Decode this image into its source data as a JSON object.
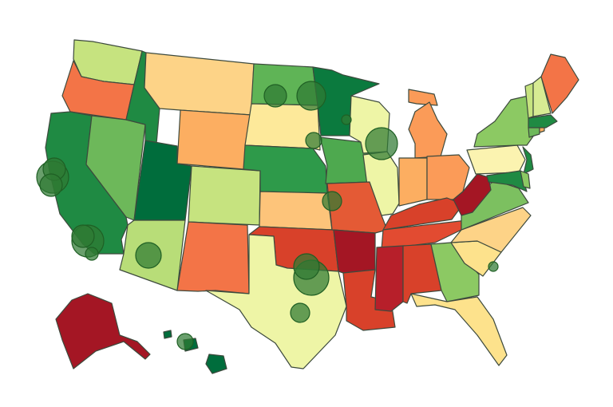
{
  "map": {
    "type": "choropleth-bubble-map",
    "region": "United States",
    "palette": {
      "dark_green": "#006d3c",
      "green": "#1f8a43",
      "mid_green": "#4ea94f",
      "light_green": "#8cc963",
      "yellow_green": "#c6e37f",
      "pale_yellow": "#eef5a6",
      "pale_orange": "#fdd387",
      "orange": "#fcae61",
      "dark_orange": "#f37447",
      "red": "#d8412a",
      "dark_red": "#a41624"
    },
    "bubble_color": "#2f7a33"
  },
  "states": [
    {
      "code": "WA",
      "fill": "#c6e37f"
    },
    {
      "code": "OR",
      "fill": "#f37447"
    },
    {
      "code": "CA",
      "fill": "#1f8a43"
    },
    {
      "code": "NV",
      "fill": "#6db85a"
    },
    {
      "code": "ID",
      "fill": "#1f8a43"
    },
    {
      "code": "MT",
      "fill": "#fdd387"
    },
    {
      "code": "WY",
      "fill": "#fcae61"
    },
    {
      "code": "UT",
      "fill": "#006d3c"
    },
    {
      "code": "AZ",
      "fill": "#b8dd78"
    },
    {
      "code": "CO",
      "fill": "#c6e37f"
    },
    {
      "code": "NM",
      "fill": "#f37447"
    },
    {
      "code": "ND",
      "fill": "#5fb456"
    },
    {
      "code": "SD",
      "fill": "#fde99a"
    },
    {
      "code": "NE",
      "fill": "#2e9a4a"
    },
    {
      "code": "KS",
      "fill": "#fdc47a"
    },
    {
      "code": "OK",
      "fill": "#d8412a"
    },
    {
      "code": "TX",
      "fill": "#eef5a6"
    },
    {
      "code": "MN",
      "fill": "#0b7a3e"
    },
    {
      "code": "IA",
      "fill": "#4ea94f"
    },
    {
      "code": "MO",
      "fill": "#e45a35"
    },
    {
      "code": "AR",
      "fill": "#a41624"
    },
    {
      "code": "LA",
      "fill": "#d8412a"
    },
    {
      "code": "WI",
      "fill": "#eef5a6"
    },
    {
      "code": "IL",
      "fill": "#eef5a6"
    },
    {
      "code": "MI",
      "fill": "#fb9b58"
    },
    {
      "code": "IN",
      "fill": "#fcae61"
    },
    {
      "code": "OH",
      "fill": "#fb9b58"
    },
    {
      "code": "KY",
      "fill": "#d8412a"
    },
    {
      "code": "TN",
      "fill": "#e24b31"
    },
    {
      "code": "MS",
      "fill": "#b71f2a"
    },
    {
      "code": "AL",
      "fill": "#d8412a"
    },
    {
      "code": "GA",
      "fill": "#8cc963"
    },
    {
      "code": "FL",
      "fill": "#fde28c"
    },
    {
      "code": "SC",
      "fill": "#fde28c"
    },
    {
      "code": "NC",
      "fill": "#fdd387"
    },
    {
      "code": "VA",
      "fill": "#7cc060"
    },
    {
      "code": "WV",
      "fill": "#a41624"
    },
    {
      "code": "PA",
      "fill": "#fbf3b0"
    },
    {
      "code": "NY",
      "fill": "#8cc963"
    },
    {
      "code": "NJ",
      "fill": "#1f8a43"
    },
    {
      "code": "MD",
      "fill": "#1f8a43"
    },
    {
      "code": "DE",
      "fill": "#8cc963"
    },
    {
      "code": "CT",
      "fill": "#6db85a"
    },
    {
      "code": "RI",
      "fill": "#fcae61"
    },
    {
      "code": "MA",
      "fill": "#1f8a43"
    },
    {
      "code": "VT",
      "fill": "#c6e37f"
    },
    {
      "code": "NH",
      "fill": "#d7eb93"
    },
    {
      "code": "ME",
      "fill": "#f37447"
    },
    {
      "code": "AK",
      "fill": "#a41624"
    },
    {
      "code": "HI",
      "fill": "#006d3c"
    }
  ]
}
